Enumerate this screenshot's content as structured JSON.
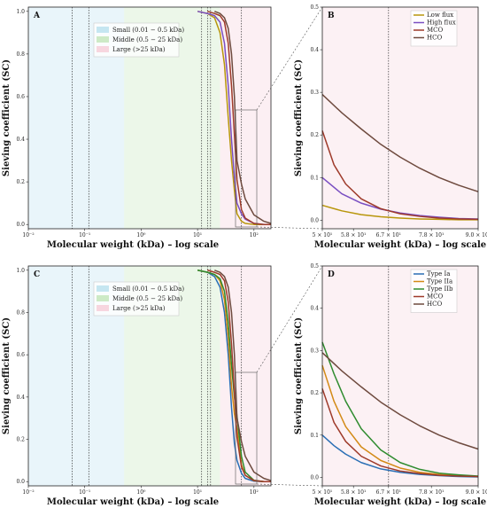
{
  "colors": {
    "small": "#bfe3f0",
    "middle": "#c8e8c0",
    "large": "#f6d2dc",
    "low_flux": "#b8960b",
    "high_flux": "#7a4fc2",
    "mco": "#9e3a2a",
    "hco": "#6e4a3e",
    "type_ia": "#2a6fb5",
    "type_iia": "#d38a16",
    "type_iib": "#2e8b2e"
  },
  "region_legend": {
    "small": "Small (0.01 − 0.5 kDa)",
    "middle": "Middle (0.5 − 25 kDa)",
    "large": "Large (>25 kDa)"
  },
  "chart_data": [
    {
      "panel": "A",
      "type": "line",
      "xscale": "log",
      "xlim": [
        0.01,
        200
      ],
      "ylim": [
        -0.02,
        1.02
      ],
      "xlabel": "Molecular weight (kDa) – log scale",
      "ylabel": "Sieving coefficient (SC)",
      "xticks": [
        {
          "value": 0.01,
          "label": "10⁻²"
        },
        {
          "value": 0.1,
          "label": "10⁻¹"
        },
        {
          "value": 1,
          "label": "10⁰"
        },
        {
          "value": 10,
          "label": "10¹"
        },
        {
          "value": 100,
          "label": "10²"
        }
      ],
      "yticks": [
        0.0,
        0.2,
        0.4,
        0.6,
        0.8,
        1.0
      ],
      "regions": [
        {
          "key": "small",
          "from": 0.01,
          "to": 0.5
        },
        {
          "key": "middle",
          "from": 0.5,
          "to": 25
        },
        {
          "key": "large",
          "from": 25,
          "to": 200
        }
      ],
      "vlines": [
        0.06,
        0.118,
        11.8,
        15,
        17,
        60
      ],
      "series": [
        {
          "name": "Low flux",
          "x": [
            10,
            15,
            20,
            25,
            30,
            35,
            40,
            45,
            50,
            60,
            70,
            100,
            150,
            200
          ],
          "y": [
            1.0,
            0.99,
            0.97,
            0.9,
            0.75,
            0.5,
            0.3,
            0.16,
            0.05,
            0.015,
            0.005,
            0.0,
            0.0,
            0.0
          ]
        },
        {
          "name": "High flux",
          "x": [
            10,
            15,
            20,
            25,
            30,
            35,
            40,
            45,
            50,
            60,
            70,
            100,
            150,
            200
          ],
          "y": [
            1.0,
            0.99,
            0.98,
            0.95,
            0.85,
            0.65,
            0.4,
            0.22,
            0.1,
            0.05,
            0.025,
            0.005,
            0.0,
            0.0
          ]
        },
        {
          "name": "MCO",
          "x": [
            15,
            20,
            25,
            30,
            35,
            40,
            45,
            50,
            60,
            70,
            100,
            150,
            200
          ],
          "y": [
            1.0,
            0.99,
            0.98,
            0.95,
            0.85,
            0.65,
            0.42,
            0.21,
            0.07,
            0.03,
            0.005,
            0.0,
            0.0
          ]
        },
        {
          "name": "HCO",
          "x": [
            20,
            25,
            30,
            35,
            40,
            45,
            50,
            60,
            70,
            100,
            150,
            200
          ],
          "y": [
            1.0,
            0.99,
            0.97,
            0.92,
            0.8,
            0.6,
            0.3,
            0.19,
            0.12,
            0.045,
            0.015,
            0.005
          ]
        }
      ]
    },
    {
      "panel": "B",
      "type": "line",
      "xscale": "linear",
      "xlim": [
        50,
        90
      ],
      "ylim": [
        -0.02,
        0.5
      ],
      "xlabel": "Molecular weight (kDa) – log scale",
      "ylabel": "Sieving coefficient (SC)",
      "xticks": [
        {
          "value": 50,
          "label": "5 × 10¹"
        },
        {
          "value": 58,
          "label": "5.8 × 10¹"
        },
        {
          "value": 67,
          "label": "6.7 × 10¹"
        },
        {
          "value": 78,
          "label": "7.8 × 10¹"
        },
        {
          "value": 90,
          "label": "9.0 × 10¹"
        }
      ],
      "yticks": [
        0.0,
        0.1,
        0.2,
        0.3,
        0.4,
        0.5
      ],
      "vlines": [
        67
      ],
      "legend_entries": [
        "Low flux",
        "High flux",
        "MCO",
        "HCO"
      ],
      "series": [
        {
          "name": "Low flux",
          "x": [
            50,
            55,
            60,
            65,
            70,
            75,
            80,
            85,
            90
          ],
          "y": [
            0.035,
            0.022,
            0.013,
            0.008,
            0.005,
            0.003,
            0.002,
            0.001,
            0.001
          ]
        },
        {
          "name": "High flux",
          "x": [
            50,
            55,
            60,
            65,
            70,
            75,
            80,
            85,
            90
          ],
          "y": [
            0.1,
            0.062,
            0.04,
            0.026,
            0.017,
            0.011,
            0.007,
            0.004,
            0.003
          ]
        },
        {
          "name": "MCO",
          "x": [
            50,
            53,
            56,
            60,
            65,
            70,
            75,
            80,
            85,
            90
          ],
          "y": [
            0.21,
            0.13,
            0.085,
            0.05,
            0.027,
            0.015,
            0.009,
            0.005,
            0.003,
            0.002
          ]
        },
        {
          "name": "HCO",
          "x": [
            50,
            55,
            60,
            65,
            70,
            75,
            80,
            85,
            90
          ],
          "y": [
            0.295,
            0.252,
            0.214,
            0.178,
            0.148,
            0.122,
            0.1,
            0.082,
            0.067
          ]
        }
      ]
    },
    {
      "panel": "C",
      "type": "line",
      "xscale": "log",
      "xlim": [
        0.01,
        200
      ],
      "ylim": [
        -0.02,
        1.02
      ],
      "xlabel": "Molecular weight (kDa) – log scale",
      "ylabel": "Sieving coefficient (SC)",
      "xticks": [
        {
          "value": 0.01,
          "label": "10⁻²"
        },
        {
          "value": 0.1,
          "label": "10⁻¹"
        },
        {
          "value": 1,
          "label": "10⁰"
        },
        {
          "value": 10,
          "label": "10¹"
        },
        {
          "value": 100,
          "label": "10²"
        }
      ],
      "yticks": [
        0.0,
        0.2,
        0.4,
        0.6,
        0.8,
        1.0
      ],
      "regions": [
        {
          "key": "small",
          "from": 0.01,
          "to": 0.5
        },
        {
          "key": "middle",
          "from": 0.5,
          "to": 25
        },
        {
          "key": "large",
          "from": 25,
          "to": 200
        }
      ],
      "vlines": [
        0.06,
        0.118,
        11.8,
        15,
        17,
        60
      ],
      "series": [
        {
          "name": "Type Ia",
          "x": [
            10,
            15,
            20,
            25,
            30,
            35,
            40,
            45,
            50,
            60,
            70,
            100,
            150,
            200
          ],
          "y": [
            1.0,
            0.99,
            0.97,
            0.92,
            0.8,
            0.6,
            0.35,
            0.18,
            0.1,
            0.04,
            0.015,
            0.002,
            0.0,
            0.0
          ]
        },
        {
          "name": "Type IIa",
          "x": [
            10,
            15,
            20,
            25,
            30,
            35,
            40,
            45,
            50,
            60,
            70,
            100,
            150,
            200
          ],
          "y": [
            1.0,
            0.99,
            0.98,
            0.95,
            0.86,
            0.68,
            0.45,
            0.32,
            0.25,
            0.08,
            0.03,
            0.004,
            0.0,
            0.0
          ]
        },
        {
          "name": "Type IIb",
          "x": [
            10,
            15,
            20,
            25,
            30,
            35,
            40,
            45,
            50,
            60,
            70,
            100,
            150,
            200
          ],
          "y": [
            1.0,
            0.99,
            0.98,
            0.96,
            0.9,
            0.75,
            0.55,
            0.4,
            0.31,
            0.12,
            0.045,
            0.006,
            0.0,
            0.0
          ]
        },
        {
          "name": "MCO",
          "x": [
            15,
            20,
            25,
            30,
            35,
            40,
            45,
            50,
            60,
            70,
            100,
            150,
            200
          ],
          "y": [
            1.0,
            0.99,
            0.98,
            0.95,
            0.85,
            0.65,
            0.42,
            0.21,
            0.07,
            0.03,
            0.005,
            0.0,
            0.0
          ]
        },
        {
          "name": "HCO",
          "x": [
            20,
            25,
            30,
            35,
            40,
            45,
            50,
            60,
            70,
            100,
            150,
            200
          ],
          "y": [
            1.0,
            0.99,
            0.97,
            0.92,
            0.8,
            0.6,
            0.3,
            0.19,
            0.12,
            0.045,
            0.015,
            0.005
          ]
        }
      ]
    },
    {
      "panel": "D",
      "type": "line",
      "xscale": "linear",
      "xlim": [
        50,
        90
      ],
      "ylim": [
        -0.02,
        0.5
      ],
      "xlabel": "Molecular weight (kDa) – log scale",
      "ylabel": "Sieving coefficient (SC)",
      "xticks": [
        {
          "value": 50,
          "label": "5 × 10¹"
        },
        {
          "value": 58,
          "label": "5.8 × 10¹"
        },
        {
          "value": 67,
          "label": "6.7 × 10¹"
        },
        {
          "value": 78,
          "label": "7.8 × 10¹"
        },
        {
          "value": 90,
          "label": "9.0 × 10¹"
        }
      ],
      "yticks": [
        0.0,
        0.1,
        0.2,
        0.3,
        0.4,
        0.5
      ],
      "vlines": [
        67
      ],
      "legend_entries": [
        "Type Ia",
        "Type IIa",
        "Type IIb",
        "MCO",
        "HCO"
      ],
      "series": [
        {
          "name": "Type Ia",
          "x": [
            50,
            53,
            56,
            60,
            65,
            70,
            75,
            80,
            85,
            90
          ],
          "y": [
            0.1,
            0.075,
            0.055,
            0.035,
            0.02,
            0.012,
            0.007,
            0.004,
            0.002,
            0.001
          ]
        },
        {
          "name": "Type IIa",
          "x": [
            50,
            53,
            56,
            60,
            65,
            70,
            75,
            80,
            85,
            90
          ],
          "y": [
            0.265,
            0.18,
            0.12,
            0.072,
            0.04,
            0.022,
            0.012,
            0.007,
            0.004,
            0.002
          ]
        },
        {
          "name": "Type IIb",
          "x": [
            50,
            53,
            56,
            60,
            65,
            70,
            75,
            80,
            85,
            90
          ],
          "y": [
            0.32,
            0.245,
            0.18,
            0.115,
            0.065,
            0.035,
            0.019,
            0.01,
            0.006,
            0.003
          ]
        },
        {
          "name": "MCO",
          "x": [
            50,
            53,
            56,
            60,
            65,
            70,
            75,
            80,
            85,
            90
          ],
          "y": [
            0.21,
            0.13,
            0.085,
            0.05,
            0.027,
            0.015,
            0.009,
            0.005,
            0.003,
            0.002
          ]
        },
        {
          "name": "HCO",
          "x": [
            50,
            55,
            60,
            65,
            70,
            75,
            80,
            85,
            90
          ],
          "y": [
            0.295,
            0.252,
            0.214,
            0.178,
            0.148,
            0.122,
            0.1,
            0.082,
            0.067
          ]
        }
      ]
    }
  ]
}
